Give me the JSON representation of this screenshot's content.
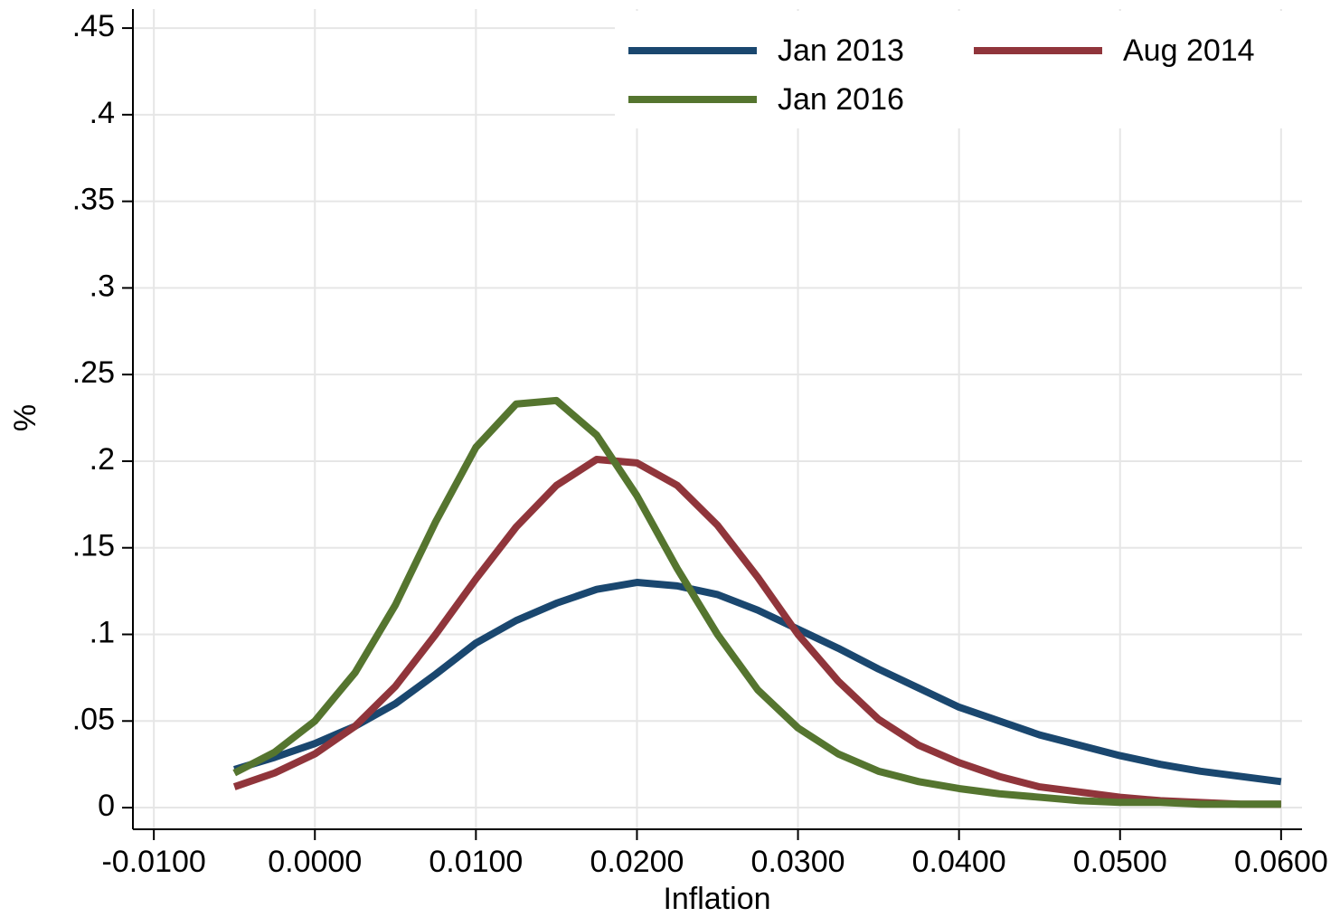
{
  "chart_data": {
    "type": "line",
    "x_label": "Inflation",
    "y_label": "%",
    "x": [
      -0.005,
      -0.0025,
      0,
      0.0025,
      0.005,
      0.0075,
      0.01,
      0.0125,
      0.015,
      0.0175,
      0.02,
      0.0225,
      0.025,
      0.0275,
      0.03,
      0.0325,
      0.035,
      0.0375,
      0.04,
      0.0425,
      0.045,
      0.0475,
      0.05,
      0.0525,
      0.055,
      0.0575,
      0.06
    ],
    "series": [
      {
        "name": "Jan 2013",
        "color": "#1a476f",
        "values": [
          0.022,
          0.029,
          0.037,
          0.047,
          0.06,
          0.077,
          0.095,
          0.108,
          0.118,
          0.126,
          0.13,
          0.128,
          0.123,
          0.114,
          0.103,
          0.092,
          0.08,
          0.069,
          0.058,
          0.05,
          0.042,
          0.036,
          0.03,
          0.025,
          0.021,
          0.018,
          0.015
        ]
      },
      {
        "name": "Aug 2014",
        "color": "#90353b",
        "values": [
          0.012,
          0.02,
          0.031,
          0.047,
          0.07,
          0.1,
          0.132,
          0.162,
          0.186,
          0.201,
          0.199,
          0.186,
          0.163,
          0.133,
          0.1,
          0.073,
          0.051,
          0.036,
          0.026,
          0.018,
          0.012,
          0.009,
          0.006,
          0.004,
          0.003,
          0.002,
          0.002
        ]
      },
      {
        "name": "Jan 2016",
        "color": "#55752f",
        "values": [
          0.02,
          0.032,
          0.05,
          0.078,
          0.117,
          0.165,
          0.208,
          0.233,
          0.235,
          0.215,
          0.18,
          0.138,
          0.1,
          0.068,
          0.046,
          0.031,
          0.021,
          0.015,
          0.011,
          0.008,
          0.006,
          0.004,
          0.003,
          0.003,
          0.002,
          0.002,
          0.002
        ]
      }
    ],
    "xlim": [
      -0.0113,
      0.0613
    ],
    "ylim": [
      -0.0125,
      0.461
    ],
    "xticks": [
      {
        "value": -0.01,
        "label": "-0.0100"
      },
      {
        "value": 0,
        "label": "0.0000"
      },
      {
        "value": 0.01,
        "label": "0.0100"
      },
      {
        "value": 0.02,
        "label": "0.0200"
      },
      {
        "value": 0.03,
        "label": "0.0300"
      },
      {
        "value": 0.04,
        "label": "0.0400"
      },
      {
        "value": 0.05,
        "label": "0.0500"
      },
      {
        "value": 0.06,
        "label": "0.0600"
      }
    ],
    "yticks": [
      0,
      {
        "value": 0.05,
        "label": ".05"
      },
      {
        "value": 0.1,
        "label": ".1"
      },
      {
        "value": 0.15,
        "label": ".15"
      },
      {
        "value": 0.2,
        "label": ".2"
      },
      {
        "value": 0.25,
        "label": ".25"
      },
      {
        "value": 0.3,
        "label": ".3"
      },
      {
        "value": 0.35,
        "label": ".35"
      },
      {
        "value": 0.4,
        "label": ".4"
      },
      {
        "value": 0.45,
        "label": ".45"
      }
    ],
    "grid": true,
    "legend_position": "top-right"
  }
}
